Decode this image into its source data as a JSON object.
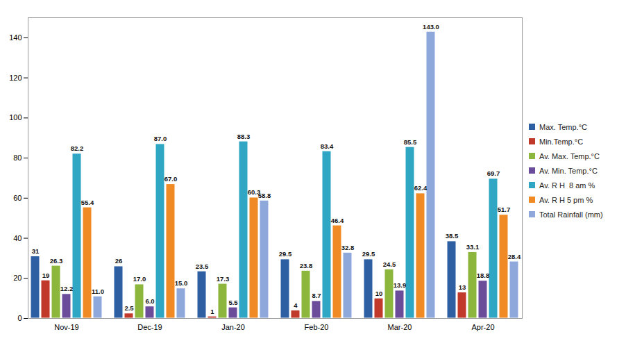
{
  "chart_data": {
    "type": "bar",
    "categories": [
      "Nov-19",
      "Dec-19",
      "Jan-20",
      "Feb-20",
      "Mar-20",
      "Apr-20"
    ],
    "series": [
      {
        "name": "Max. Temp.°C",
        "color": "#2E5FA3",
        "values": [
          31,
          26,
          23.5,
          29.5,
          29.5,
          38.5
        ],
        "value_labels": [
          "31",
          "26",
          "23.5",
          "29.5",
          "29.5",
          "38.5"
        ]
      },
      {
        "name": "Min.Temp.°C",
        "color": "#C0392B",
        "values": [
          19,
          2.5,
          1,
          4,
          10,
          13
        ],
        "value_labels": [
          "19",
          "2.5",
          "1",
          "4",
          "10",
          "13"
        ]
      },
      {
        "name": "Av. Max. Temp.°C",
        "color": "#8DB63C",
        "values": [
          26.3,
          17.0,
          17.3,
          23.8,
          24.5,
          33.1
        ],
        "value_labels": [
          "26.3",
          "17.0",
          "17.3",
          "23.8",
          "24.5",
          "33.1"
        ]
      },
      {
        "name": "Av. Min. Temp.°C",
        "color": "#6B4C9A",
        "values": [
          12.2,
          6.0,
          5.5,
          8.7,
          13.9,
          18.8
        ],
        "value_labels": [
          "12.2",
          "6.0",
          "5.5",
          "8.7",
          "13.9",
          "18.8"
        ]
      },
      {
        "name": "Av. R H  8 am %",
        "color": "#2FA7C4",
        "values": [
          82.2,
          87.0,
          88.3,
          83.4,
          85.5,
          69.7
        ],
        "value_labels": [
          "82.2",
          "87.0",
          "88.3",
          "83.4",
          "85.5",
          "69.7"
        ]
      },
      {
        "name": "Av. R H 5 pm %",
        "color": "#F08A24",
        "values": [
          55.4,
          67.0,
          60.3,
          46.4,
          62.4,
          51.7
        ],
        "value_labels": [
          "55.4",
          "67.0",
          "60.3",
          "46.4",
          "62.4",
          "51.7"
        ]
      },
      {
        "name": "Total Rainfall (mm)",
        "color": "#8FA8DC",
        "values": [
          11.0,
          15.0,
          58.8,
          32.8,
          143.0,
          28.4
        ],
        "value_labels": [
          "11.0",
          "15.0",
          "58.8",
          "32.8",
          "143.0",
          "28.4"
        ]
      }
    ],
    "ylim": [
      0,
      150
    ],
    "yticks": [
      0,
      20,
      40,
      60,
      80,
      100,
      120,
      140
    ],
    "grid": false,
    "data_labels": true,
    "legend": "right"
  }
}
